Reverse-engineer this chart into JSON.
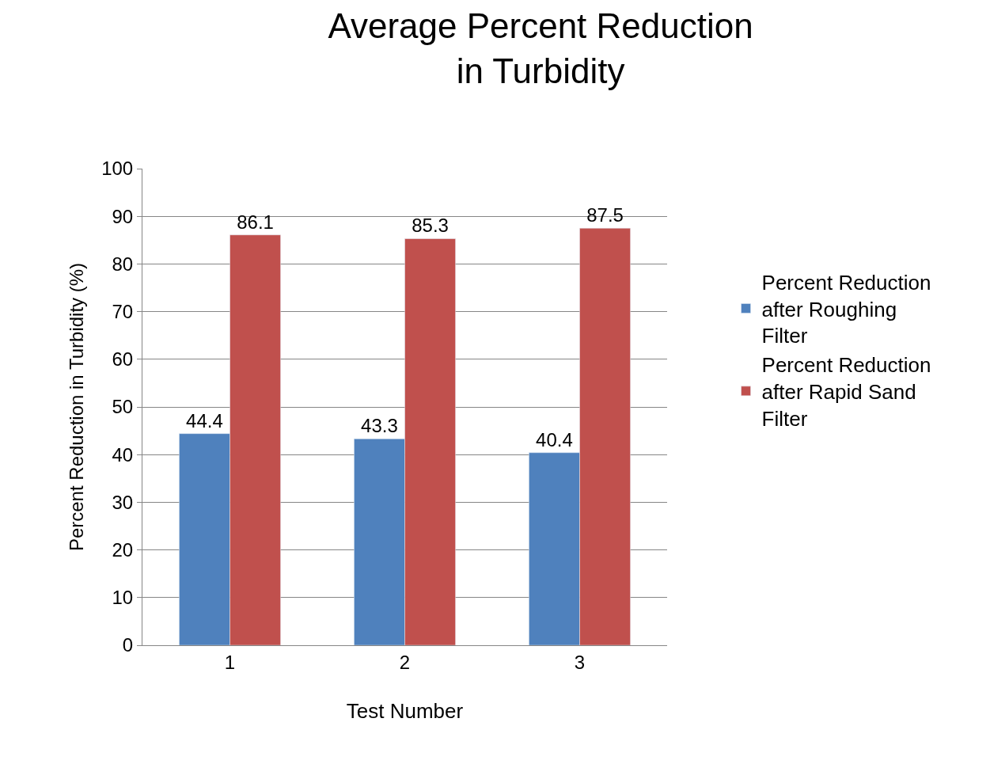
{
  "chart_data": {
    "type": "bar",
    "title": "Average Percent Reduction in Turbidity",
    "xlabel": "Test Number",
    "ylabel": "Percent Reduction in Turbidity (%)",
    "categories": [
      "1",
      "2",
      "3"
    ],
    "series": [
      {
        "name": "Percent Reduction after Roughing Filter",
        "color": "#4f81bd",
        "values": [
          44.4,
          43.3,
          40.4
        ]
      },
      {
        "name": "Percent Reduction after Rapid Sand Filter",
        "color": "#c0504d",
        "values": [
          86.1,
          85.3,
          87.5
        ]
      }
    ],
    "ylim": [
      0,
      100
    ],
    "yticks": [
      0,
      10,
      20,
      30,
      40,
      50,
      60,
      70,
      80,
      90,
      100
    ],
    "grid": "y",
    "legend": "right",
    "data_labels": true
  }
}
